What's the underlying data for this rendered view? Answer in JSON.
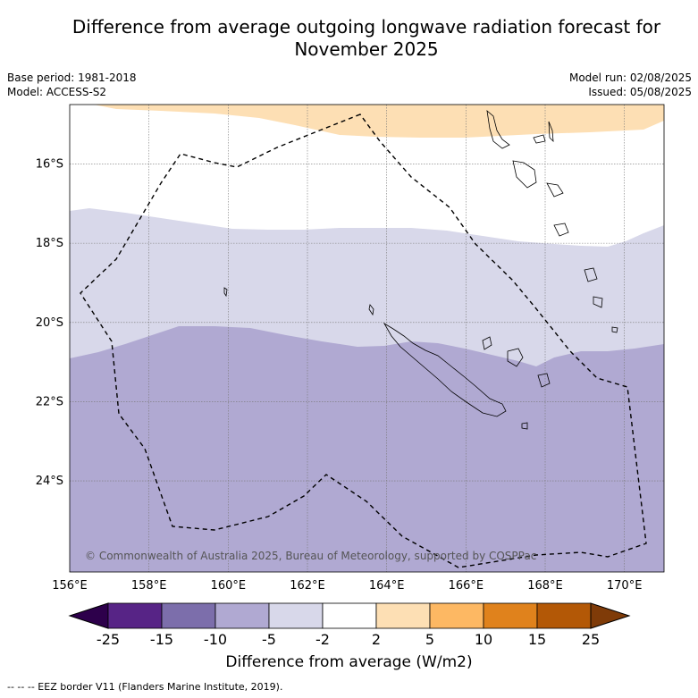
{
  "title_line1": "Difference from average outgoing longwave radiation forecast for",
  "title_line2": "November 2025",
  "meta": {
    "base_period": "Base period: 1981-2018",
    "model": "Model: ACCESS-S2",
    "model_run": "Model run: 02/08/2025",
    "issued": "Issued: 05/08/2025"
  },
  "map": {
    "region": "New Caledonia",
    "lon_range": [
      156,
      171
    ],
    "lat_range": [
      -26.3,
      -14.5
    ],
    "lon_ticks": [
      "156°E",
      "158°E",
      "160°E",
      "162°E",
      "164°E",
      "166°E",
      "168°E",
      "170°E"
    ],
    "lat_ticks": [
      "16°S",
      "18°S",
      "20°S",
      "22°S",
      "24°S"
    ],
    "copyright": "© Commonwealth of Australia 2025, Bureau of Meteorology, supported by COSPPac",
    "eez_line_style": "dashed",
    "colors": {
      "c_2_5": "#fddfb4",
      "c_neg2_2": "#ffffff",
      "c_neg5_neg2": "#d8d8ea",
      "c_neg10_neg5": "#b0a9d2"
    }
  },
  "colorbar": {
    "labels": [
      "-25",
      "-15",
      "-10",
      "-5",
      "-2",
      "2",
      "5",
      "10",
      "15",
      "25"
    ],
    "colors": [
      "#572486",
      "#7c6eab",
      "#b0a9d2",
      "#d8d8ea",
      "#ffffff",
      "#fddfb4",
      "#fdb863",
      "#e0821c",
      "#b35806"
    ],
    "extend_low_color": "#2d004b",
    "extend_high_color": "#7f3b08",
    "label": "Difference from average (W/m2)"
  },
  "footer": "--  --  -- EEZ border V11 (Flanders Marine Institute, 2019)."
}
